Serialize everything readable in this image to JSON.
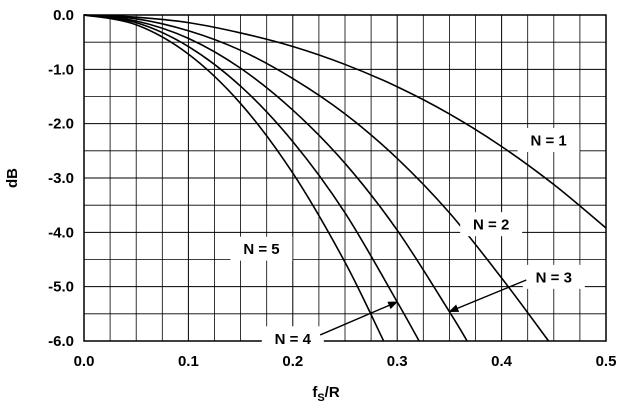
{
  "chart_data": {
    "type": "line",
    "title": "",
    "xlabel": "fS/R",
    "xlabel_main": "f",
    "xlabel_sub": "S",
    "xlabel_tail": "/R",
    "ylabel": "dB",
    "xlim": [
      0.0,
      0.5
    ],
    "ylim": [
      -6.0,
      0.0
    ],
    "grid": true,
    "legend": "inline-labels",
    "x_ticks": [
      "0.0",
      "0.1",
      "0.2",
      "0.3",
      "0.4",
      "0.5"
    ],
    "y_ticks": [
      "0.0",
      "-1.0",
      "-2.0",
      "-3.0",
      "-4.0",
      "-5.0",
      "-6.0"
    ],
    "x_tick_values": [
      0.0,
      0.1,
      0.2,
      0.3,
      0.4,
      0.5
    ],
    "y_tick_values": [
      0.0,
      -1.0,
      -2.0,
      -3.0,
      -4.0,
      -5.0,
      -6.0
    ],
    "line_color": "#000000",
    "series": [
      {
        "name": "N = 1",
        "x": [
          0.0,
          0.05,
          0.1,
          0.15,
          0.2,
          0.25,
          0.3,
          0.35,
          0.4,
          0.45,
          0.5
        ],
        "y": [
          0.0,
          -0.04,
          -0.14,
          -0.33,
          -0.58,
          -0.91,
          -1.32,
          -1.82,
          -2.42,
          -3.12,
          -3.92
        ]
      },
      {
        "name": "N = 2",
        "x": [
          0.0,
          0.05,
          0.1,
          0.15,
          0.2,
          0.25,
          0.3,
          0.35,
          0.4,
          0.445
        ],
        "y": [
          0.0,
          -0.07,
          -0.29,
          -0.65,
          -1.17,
          -1.82,
          -2.64,
          -3.64,
          -4.84,
          -6.0
        ]
      },
      {
        "name": "N = 3",
        "x": [
          0.0,
          0.05,
          0.1,
          0.15,
          0.2,
          0.25,
          0.3,
          0.35,
          0.367
        ],
        "y": [
          0.0,
          -0.11,
          -0.43,
          -0.98,
          -1.75,
          -2.73,
          -3.96,
          -5.46,
          -6.0
        ]
      },
      {
        "name": "N = 4",
        "x": [
          0.0,
          0.05,
          0.1,
          0.15,
          0.2,
          0.25,
          0.3,
          0.321
        ],
        "y": [
          0.0,
          -0.14,
          -0.58,
          -1.31,
          -2.33,
          -3.64,
          -5.28,
          -6.0
        ]
      },
      {
        "name": "N = 5",
        "x": [
          0.0,
          0.05,
          0.1,
          0.15,
          0.2,
          0.25,
          0.287
        ],
        "y": [
          0.0,
          -0.18,
          -0.72,
          -1.63,
          -2.91,
          -4.55,
          -6.0
        ]
      }
    ],
    "annotations": [
      {
        "text": "N = 1",
        "series": "N = 1",
        "x": 0.445,
        "y": -2.3,
        "arrow": false
      },
      {
        "text": "N = 2",
        "series": "N = 2",
        "x": 0.39,
        "y": -3.85,
        "arrow": false
      },
      {
        "text": "N = 3",
        "series": "N = 3",
        "x": 0.45,
        "y": -4.82,
        "arrow": true,
        "arrow_to": [
          0.35,
          -5.46
        ]
      },
      {
        "text": "N = 4",
        "series": "N = 4",
        "x": 0.2,
        "y": -5.95,
        "arrow": true,
        "arrow_to": [
          0.3,
          -5.28
        ]
      },
      {
        "text": "N = 5",
        "series": "N = 5",
        "x": 0.17,
        "y": -4.3,
        "arrow": false
      }
    ]
  }
}
